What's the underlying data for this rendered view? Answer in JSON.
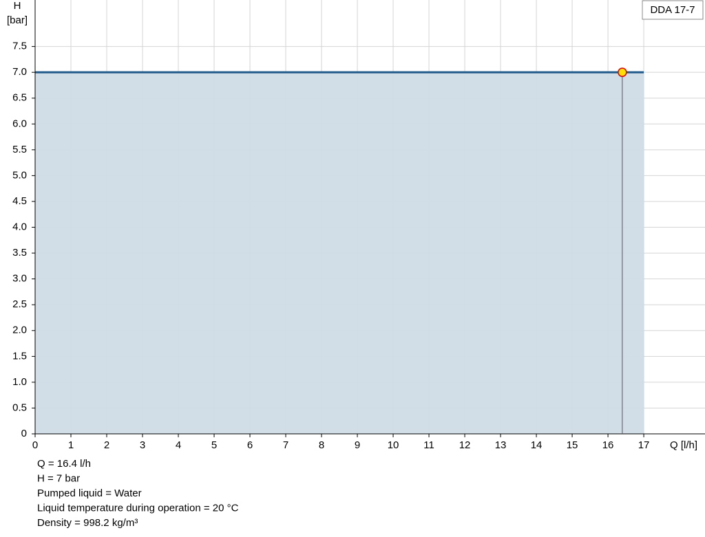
{
  "chart_data": {
    "type": "line",
    "y_label": "H",
    "y_unit": "[bar]",
    "x_label": "Q [l/h]",
    "xlim": [
      0,
      18.71
    ],
    "ylim": [
      0,
      8.4
    ],
    "xticks": [
      0,
      1,
      2,
      3,
      4,
      5,
      6,
      7,
      8,
      9,
      10,
      11,
      12,
      13,
      14,
      15,
      16,
      17
    ],
    "yticks": [
      0,
      0.5,
      {
        "value": 1,
        "label": "1.0"
      },
      1.5,
      {
        "value": 2,
        "label": "2.0"
      },
      2.5,
      {
        "value": 3,
        "label": "3.0"
      },
      3.5,
      {
        "value": 4,
        "label": "4.0"
      },
      4.5,
      {
        "value": 5,
        "label": "5.0"
      },
      5.5,
      {
        "value": 6,
        "label": "6.0"
      },
      6.5,
      {
        "value": 7,
        "label": "7.0"
      },
      7.5
    ],
    "grid": true,
    "series": [
      {
        "name": "DDA 17-7",
        "color": "#1f5a8a",
        "area_color": "#cfdbe6",
        "x": [
          0,
          17
        ],
        "values": [
          7,
          7
        ]
      }
    ],
    "operating_point": {
      "x": 16.4,
      "y": 7,
      "color": "#ffe000"
    },
    "info": [
      "Q = 16.4 l/h",
      "H = 7 bar",
      "Pumped liquid = Water",
      "Liquid temperature during operation = 20 °C",
      "Density = 998.2 kg/m³"
    ]
  }
}
